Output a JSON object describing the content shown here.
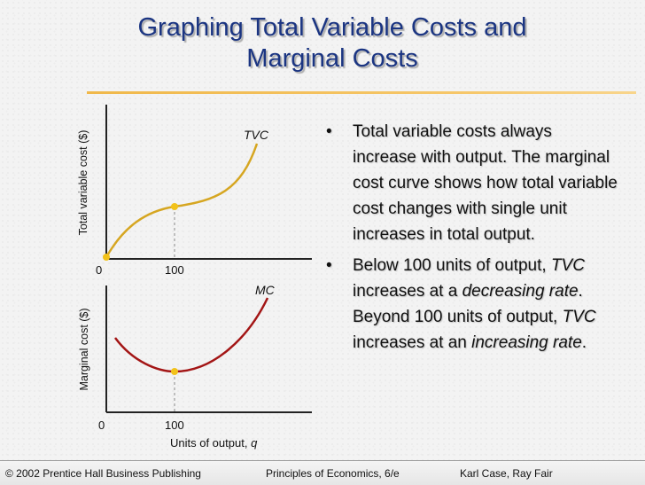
{
  "title": {
    "line1": "Graphing Total Variable Costs and",
    "line2": "Marginal Costs"
  },
  "bullets": [
    {
      "segments": [
        {
          "text": "Total variable costs always increase with output.  The marginal cost curve shows how total variable cost changes with single unit increases in total output.",
          "italic": false
        }
      ]
    },
    {
      "segments": [
        {
          "text": "Below 100 units of output, ",
          "italic": false
        },
        {
          "text": "TVC",
          "italic": true
        },
        {
          "text": " increases at a ",
          "italic": false
        },
        {
          "text": "decreasing rate",
          "italic": true
        },
        {
          "text": ".  Beyond 100 units of output, ",
          "italic": false
        },
        {
          "text": "TVC",
          "italic": true
        },
        {
          "text": " increases at an ",
          "italic": false
        },
        {
          "text": "increasing rate",
          "italic": true
        },
        {
          "text": ".",
          "italic": false
        }
      ]
    }
  ],
  "bullet_glyph": "•",
  "charts": {
    "tvc": {
      "ylabel": "Total variable cost ($)",
      "curve_label": "TVC",
      "origin_label": "0",
      "tick_label": "100",
      "color": "#d6a621"
    },
    "mc": {
      "ylabel": "Marginal cost ($)",
      "curve_label": "MC",
      "origin_label": "0",
      "tick_label": "100",
      "xlabel_text": "Units of output, ",
      "xlabel_var": "q",
      "color": "#a31515"
    }
  },
  "footer": {
    "left": "© 2002 Prentice Hall Business Publishing",
    "center": "Principles of Economics, 6/e",
    "right": "Karl Case, Ray Fair"
  }
}
